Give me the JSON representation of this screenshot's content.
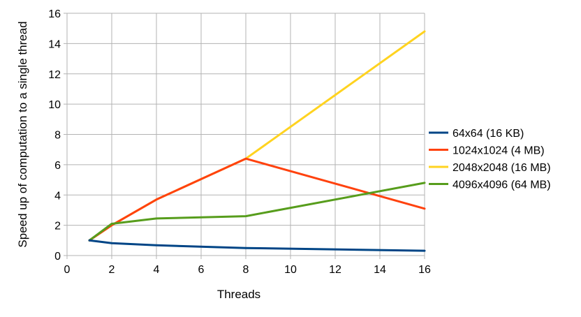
{
  "chart_data": {
    "type": "line",
    "title": "",
    "xlabel": "Threads",
    "ylabel": "Speed up of computation to a single thread",
    "xlim": [
      0,
      16
    ],
    "ylim": [
      0,
      16
    ],
    "xticks": [
      0,
      2,
      4,
      6,
      8,
      10,
      12,
      14,
      16
    ],
    "yticks": [
      0,
      2,
      4,
      6,
      8,
      10,
      12,
      14,
      16
    ],
    "grid": true,
    "legend_position": "right",
    "x": [
      1,
      2,
      4,
      8,
      16
    ],
    "series": [
      {
        "name": "64x64 (16 KB)",
        "color": "#004586",
        "values": [
          1.0,
          0.82,
          0.68,
          0.5,
          0.32
        ]
      },
      {
        "name": "1024x1024 (4 MB)",
        "color": "#ff420e",
        "values": [
          1.0,
          2.0,
          3.7,
          6.4,
          3.1
        ]
      },
      {
        "name": "2048x2048 (16 MB)",
        "color": "#ffd320",
        "values": [
          1.0,
          2.0,
          3.7,
          6.4,
          14.8
        ]
      },
      {
        "name": "4096x4096 (64 MB)",
        "color": "#579d1c",
        "values": [
          1.0,
          2.1,
          2.45,
          2.6,
          4.8
        ]
      }
    ]
  }
}
